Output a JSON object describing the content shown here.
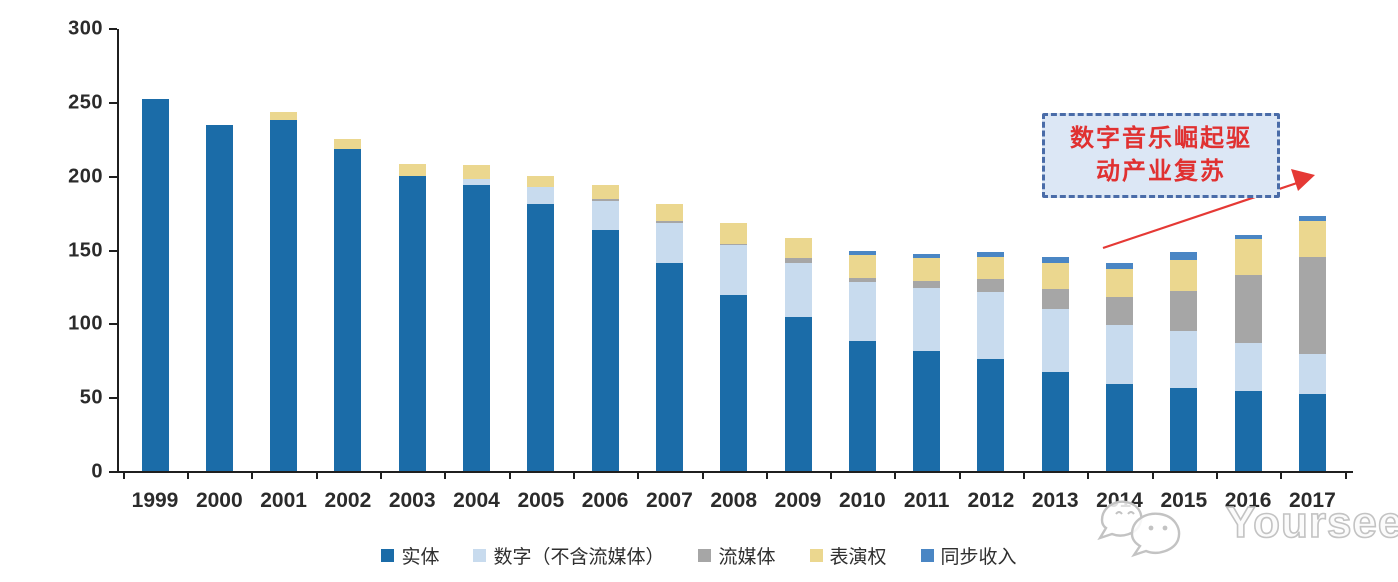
{
  "chart_data": {
    "type": "bar",
    "stacked": true,
    "title": "",
    "xlabel": "",
    "ylabel": "",
    "ylim": [
      0,
      300
    ],
    "yticks": [
      0,
      50,
      100,
      150,
      200,
      250,
      300
    ],
    "grid": false,
    "legend_position": "bottom",
    "categories": [
      "1999",
      "2000",
      "2001",
      "2002",
      "2003",
      "2004",
      "2005",
      "2006",
      "2007",
      "2008",
      "2009",
      "2010",
      "2011",
      "2012",
      "2013",
      "2014",
      "2015",
      "2016",
      "2017"
    ],
    "series": [
      {
        "name": "实体",
        "color": "#1b6ca8",
        "values": [
          252,
          234,
          238,
          218,
          200,
          194,
          181,
          163,
          141,
          119,
          104,
          88,
          81,
          76,
          67,
          59,
          56,
          54,
          52
        ]
      },
      {
        "name": "数字（不含流媒体）",
        "color": "#c8dbee",
        "values": [
          0,
          0,
          0,
          0,
          0,
          4,
          11,
          20,
          27,
          34,
          37,
          40,
          43,
          45,
          43,
          40,
          39,
          33,
          27
        ]
      },
      {
        "name": "流媒体",
        "color": "#a6a6a6",
        "values": [
          0,
          0,
          0,
          0,
          0,
          0,
          0,
          1,
          1,
          1,
          3,
          3,
          5,
          9,
          13,
          19,
          27,
          46,
          66
        ]
      },
      {
        "name": "表演权",
        "color": "#ebd78f",
        "values": [
          0,
          0,
          5,
          7,
          8,
          9,
          8,
          10,
          12,
          14,
          14,
          15,
          15,
          15,
          18,
          19,
          21,
          24,
          24
        ]
      },
      {
        "name": "同步收入",
        "color": "#4a86c4",
        "values": [
          0,
          0,
          0,
          0,
          0,
          0,
          0,
          0,
          0,
          0,
          0,
          3,
          3,
          3,
          4,
          4,
          5,
          3,
          4
        ]
      }
    ]
  },
  "annotation": {
    "line1": "数字音乐崛起驱",
    "line2": "动产业复苏",
    "box_fill": "#dce7f5",
    "box_border": "#4a6ca8",
    "text_color": "#e03131",
    "arrow_color": "#e53935"
  },
  "watermark": {
    "text": "Yourseeker",
    "icon": "wechat-bubbles-icon",
    "color": "#c3c3c3"
  },
  "axis": {
    "color": "#1f1f1f",
    "label_color": "#2b2b2b"
  }
}
